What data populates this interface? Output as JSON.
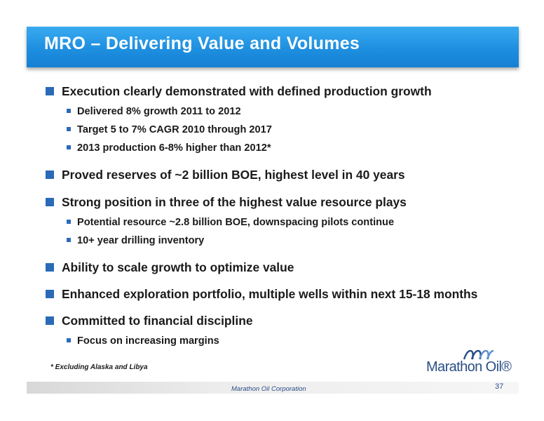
{
  "slide": {
    "title": "MRO – Delivering Value and Volumes",
    "bullets": [
      "Execution clearly demonstrated with defined production growth",
      "Proved reserves of ~2 billion BOE, highest level in 40 years",
      "Strong position in three of the highest value resource plays",
      "Ability to scale growth to optimize value",
      "Enhanced exploration portfolio, multiple wells within next 15-18 months",
      "Committed to financial discipline"
    ],
    "sub_bullets_execution": [
      "Delivered 8% growth 2011 to 2012",
      "Target 5 to 7% CAGR 2010 through 2017",
      "2013 production 6-8% higher than 2012*"
    ],
    "sub_bullets_resource": [
      "Potential resource ~2.8 billion BOE, downspacing pilots continue",
      "10+ year drilling inventory"
    ],
    "sub_bullets_discipline": [
      "Focus on increasing margins"
    ],
    "footnote": "* Excluding Alaska and Libya",
    "logo_text": "Marathon Oil®",
    "footer_company": "Marathon Oil Corporation",
    "page_number": "37"
  },
  "colors": {
    "title_bar": "#1e8fe0",
    "bullet": "#2a6ab7",
    "logo_blue": "#2a4e86",
    "logo_light": "#5a8fd0"
  }
}
